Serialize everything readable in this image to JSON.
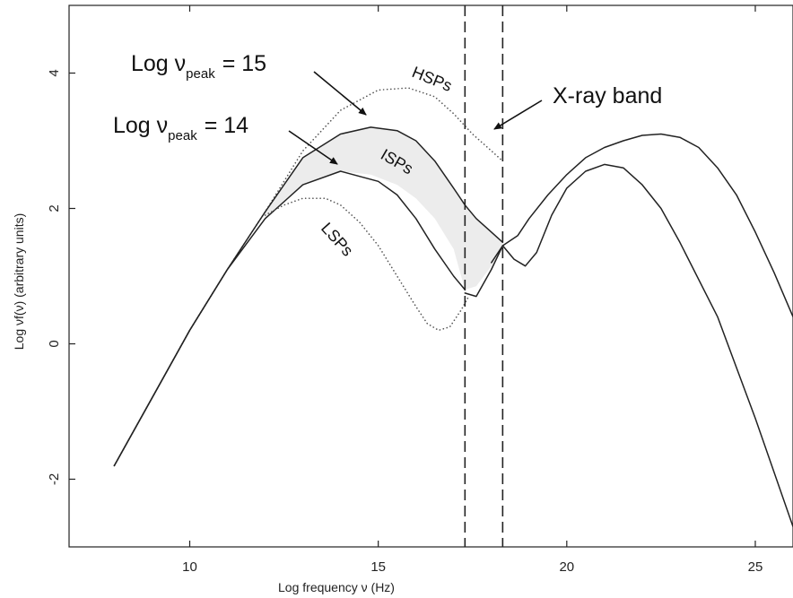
{
  "chart_data": {
    "type": "line",
    "title": "",
    "xlabel": "Log frequency ν (Hz)",
    "ylabel": "Log νf(ν) (arbitrary units)",
    "xlim": [
      6.8,
      26.0
    ],
    "ylim": [
      -3.0,
      5.0
    ],
    "grid": false,
    "xticks": [
      10,
      15,
      20,
      25
    ],
    "yticks": [
      -2,
      0,
      2,
      4
    ],
    "xtick_labels": [
      "10",
      "15",
      "20",
      "25"
    ],
    "ytick_labels": [
      "-2",
      "0",
      "2",
      "4"
    ],
    "series": [
      {
        "style": "dotted",
        "x": [
          8.0,
          9.0,
          10.0,
          11.0,
          12.0,
          13.0,
          14.0,
          15.0,
          15.8,
          16.5,
          17.0,
          17.5,
          18.0,
          18.3
        ],
        "y": [
          -1.8,
          -0.8,
          0.2,
          1.1,
          1.95,
          2.85,
          3.45,
          3.75,
          3.78,
          3.65,
          3.4,
          3.1,
          2.85,
          2.7
        ]
      },
      {
        "style": "solid",
        "x": [
          8.0,
          9.0,
          10.0,
          11.0,
          12.0,
          13.0,
          14.0,
          14.8,
          15.5,
          16.0,
          16.5,
          17.0,
          17.3,
          17.6,
          18.0,
          18.3
        ],
        "y": [
          -1.8,
          -0.8,
          0.2,
          1.1,
          1.95,
          2.75,
          3.1,
          3.2,
          3.15,
          3.0,
          2.7,
          2.3,
          2.05,
          1.85,
          1.65,
          1.5
        ]
      },
      {
        "style": "solid",
        "x": [
          8.0,
          9.0,
          10.0,
          11.0,
          12.0,
          12.5,
          13.0,
          14.0,
          15.0,
          15.5,
          16.0,
          16.5,
          17.0,
          17.3
        ],
        "y": [
          -1.8,
          -0.8,
          0.2,
          1.1,
          1.85,
          2.1,
          2.35,
          2.55,
          2.4,
          2.2,
          1.85,
          1.4,
          1.0,
          0.8
        ]
      },
      {
        "style": "dotted",
        "x": [
          12.0,
          12.5,
          13.0,
          13.6,
          14.0,
          14.5,
          15.0,
          15.5,
          16.0,
          16.3,
          16.6,
          16.9,
          17.2,
          17.4
        ],
        "y": [
          1.9,
          2.05,
          2.15,
          2.15,
          2.05,
          1.8,
          1.45,
          1.0,
          0.55,
          0.3,
          0.2,
          0.25,
          0.5,
          0.7
        ]
      },
      {
        "style": "solid",
        "x": [
          17.3,
          17.6,
          18.0,
          18.3,
          18.6,
          18.9,
          19.2,
          19.6,
          20.0,
          20.5,
          21.0,
          21.5,
          22.0,
          22.5,
          23.0,
          24.0,
          25.0,
          26.0
        ],
        "y": [
          0.75,
          0.7,
          1.1,
          1.45,
          1.25,
          1.15,
          1.35,
          1.9,
          2.3,
          2.55,
          2.65,
          2.6,
          2.35,
          2.0,
          1.5,
          0.4,
          -1.1,
          -2.7
        ]
      },
      {
        "style": "solid",
        "x": [
          18.0,
          18.3,
          18.7,
          19.0,
          19.5,
          20.0,
          20.5,
          21.0,
          21.5,
          22.0,
          22.5,
          23.0,
          23.5,
          24.0,
          24.5,
          25.0,
          25.5,
          26.0
        ],
        "y": [
          1.2,
          1.45,
          1.6,
          1.85,
          2.2,
          2.5,
          2.75,
          2.9,
          3.0,
          3.08,
          3.1,
          3.05,
          2.9,
          2.6,
          2.2,
          1.65,
          1.05,
          0.4
        ]
      }
    ],
    "vlines": [
      17.3,
      18.3
    ],
    "band": {
      "label": "ISPs",
      "x": [
        12.0,
        13.0,
        14.0,
        14.8,
        15.5,
        16.0,
        16.5,
        17.0,
        17.3,
        17.6,
        18.0,
        18.3
      ],
      "upper": [
        1.95,
        2.75,
        3.1,
        3.2,
        3.15,
        3.0,
        2.7,
        2.3,
        2.05,
        1.85,
        1.65,
        1.5
      ],
      "lower": [
        1.85,
        2.35,
        2.55,
        2.5,
        2.35,
        2.15,
        1.85,
        1.4,
        0.8,
        0.85,
        1.15,
        1.45
      ]
    },
    "annotations": {
      "peak15": {
        "main": "Log ν",
        "sub": "peak",
        "value": "= 15"
      },
      "peak14": {
        "main": "Log ν",
        "sub": "peak",
        "value": "= 14"
      },
      "hsp": "HSPs",
      "isp": "ISPs",
      "lsp": "LSPs",
      "xray": "X-ray band"
    }
  }
}
